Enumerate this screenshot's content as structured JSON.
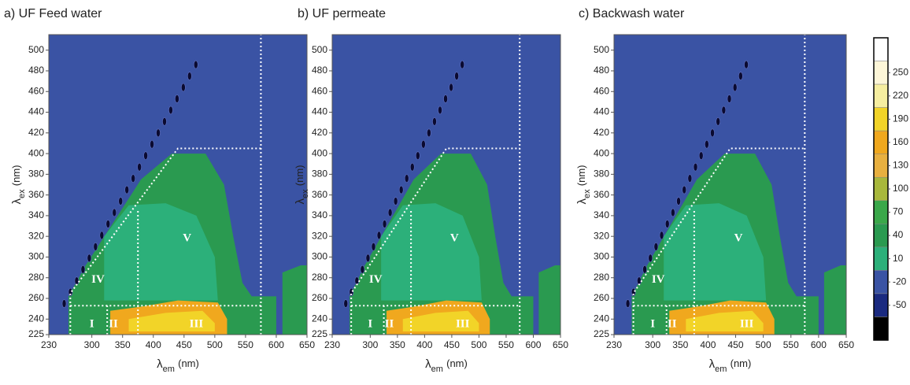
{
  "chart_data": [
    {
      "type": "contour",
      "title": "a) UF Feed water",
      "xlabel": {
        "symbol": "λ",
        "subscript": "em",
        "unit": "(nm)"
      },
      "ylabel": {
        "symbol": "λ",
        "subscript": "ex",
        "unit": "(nm)"
      },
      "xlim": [
        230,
        650
      ],
      "ylim": [
        225,
        515
      ],
      "xticks": [
        230,
        300,
        350,
        400,
        450,
        500,
        550,
        600,
        650
      ],
      "yticks": [
        225,
        240,
        260,
        280,
        300,
        320,
        340,
        360,
        380,
        400,
        420,
        440,
        460,
        480,
        500
      ],
      "region_labels": [
        "I",
        "II",
        "III",
        "IV",
        "V"
      ]
    },
    {
      "type": "contour",
      "title": "b) UF permeate",
      "xlabel": {
        "symbol": "λ",
        "subscript": "em",
        "unit": "(nm)"
      },
      "ylabel": {
        "symbol": "λ",
        "subscript": "ex",
        "unit": "(nm)"
      },
      "xlim": [
        230,
        650
      ],
      "ylim": [
        225,
        515
      ],
      "xticks": [
        230,
        300,
        350,
        400,
        450,
        500,
        550,
        600,
        650
      ],
      "yticks": [
        225,
        240,
        260,
        280,
        300,
        320,
        340,
        360,
        380,
        400,
        420,
        440,
        460,
        480,
        500
      ],
      "region_labels": [
        "I",
        "II",
        "III",
        "IV",
        "V"
      ]
    },
    {
      "type": "contour",
      "title": "c) Backwash water",
      "xlabel": {
        "symbol": "λ",
        "subscript": "em",
        "unit": "(nm)"
      },
      "ylabel": {
        "symbol": "λ",
        "subscript": "ex",
        "unit": "(nm)"
      },
      "xlim": [
        230,
        650
      ],
      "ylim": [
        225,
        515
      ],
      "xticks": [
        230,
        300,
        350,
        400,
        450,
        500,
        550,
        600,
        650
      ],
      "yticks": [
        225,
        240,
        260,
        280,
        300,
        320,
        340,
        360,
        380,
        400,
        420,
        440,
        460,
        480,
        500
      ],
      "region_labels": [
        "I",
        "II",
        "III",
        "IV",
        "V"
      ]
    },
    {
      "type": "colorbar",
      "ticks": [
        250,
        220,
        190,
        160,
        130,
        100,
        70,
        40,
        10,
        -20,
        -50
      ],
      "colors": [
        "#ffffff",
        "#fdf6d8",
        "#f6eea0",
        "#f2d428",
        "#f0a81e",
        "#e8b040",
        "#a8b83c",
        "#3aa84a",
        "#2a9a50",
        "#2cb07a",
        "#3a53a4",
        "#1a2a80",
        "#000000"
      ]
    }
  ]
}
